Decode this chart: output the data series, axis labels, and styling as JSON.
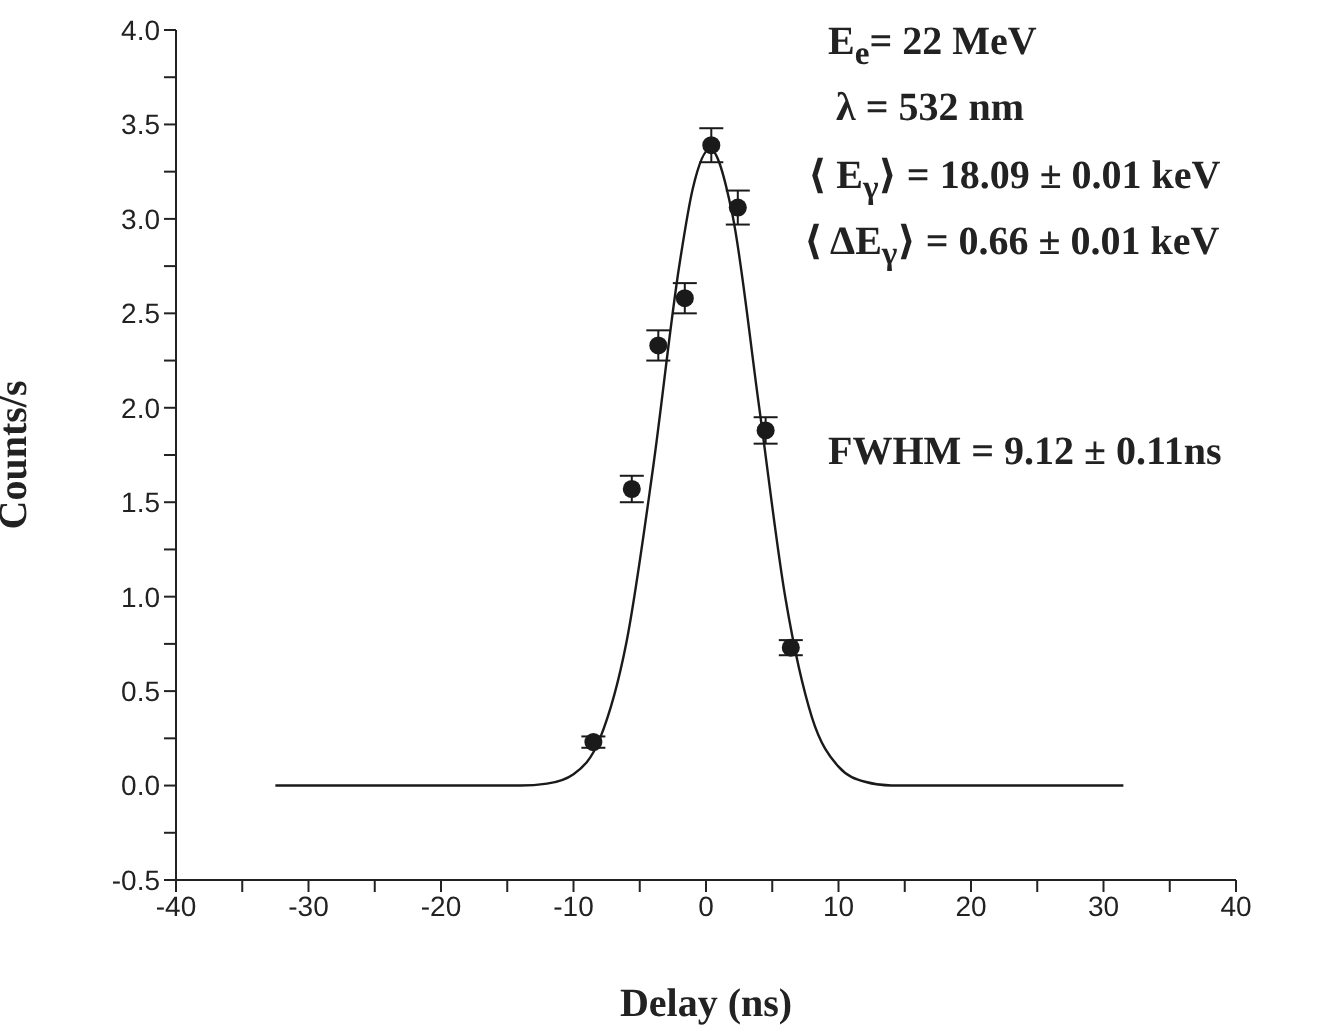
{
  "chart_data": {
    "type": "scatter",
    "xlabel": "Delay (ns)",
    "ylabel": "Counts/s",
    "xlim": [
      -40,
      40
    ],
    "xticks": [
      -40,
      {
        "value": -35,
        "label": null
      },
      -30,
      {
        "value": -25,
        "label": null
      },
      -20,
      {
        "value": -15,
        "label": null
      },
      -10,
      {
        "value": -5,
        "label": null
      },
      0,
      {
        "value": 5,
        "label": null
      },
      10,
      {
        "value": 15,
        "label": null
      },
      20,
      {
        "value": 25,
        "label": null
      },
      30,
      {
        "value": 35,
        "label": null
      },
      40
    ],
    "ylim": [
      -0.5,
      4.0
    ],
    "yticks": [
      -0.5,
      {
        "value": -0.25,
        "label": null
      },
      {
        "value": 0,
        "label": "0.0"
      },
      {
        "value": 0.25,
        "label": null
      },
      0.5,
      {
        "value": 0.75,
        "label": null
      },
      {
        "value": 1,
        "label": "1.0"
      },
      {
        "value": 1.25,
        "label": null
      },
      1.5,
      {
        "value": 1.75,
        "label": null
      },
      {
        "value": 2,
        "label": "2.0"
      },
      {
        "value": 2.25,
        "label": null
      },
      2.5,
      {
        "value": 2.75,
        "label": null
      },
      {
        "value": 3,
        "label": "3.0"
      },
      {
        "value": 3.25,
        "label": null
      },
      3.5,
      {
        "value": 3.75,
        "label": null
      },
      {
        "value": 4,
        "label": "4.0"
      }
    ],
    "series": [
      {
        "color": "#1a1a1a",
        "marker": "circle",
        "x": [
          -8.5,
          -5.6,
          -3.6,
          -1.6,
          0.4,
          2.4,
          4.5,
          6.4
        ],
        "values": [
          0.23,
          1.57,
          2.33,
          2.58,
          3.39,
          3.06,
          1.88,
          0.73
        ],
        "errors": [
          0.03,
          0.07,
          0.08,
          0.08,
          0.09,
          0.09,
          0.07,
          0.04
        ]
      },
      {
        "type": "line",
        "color": "#1a1a1a",
        "line_style": "solid",
        "marker": "none",
        "x": [
          -32.5,
          -20,
          -14,
          -12,
          -10,
          -8,
          -6,
          -4,
          -2,
          -1,
          0.3,
          2,
          4,
          6,
          8,
          10,
          12,
          14,
          20,
          31.5
        ],
        "values": [
          0,
          0,
          0,
          0.01,
          0.06,
          0.25,
          0.76,
          1.68,
          2.76,
          3.16,
          3.37,
          3.02,
          2.01,
          0.99,
          0.36,
          0.1,
          0.02,
          0,
          0,
          0
        ]
      }
    ],
    "annotations": [
      "E$_{e}$= 22 MeV",
      "λ = 532 nm",
      "⟨ E$_{γ}$⟩ = 18.09 ± 0.01 keV",
      "⟨ ΔE$_{γ}$⟩ = 0.66 ± 0.01 keV",
      "FWHM = 9.12 ± 0.11ns"
    ]
  }
}
